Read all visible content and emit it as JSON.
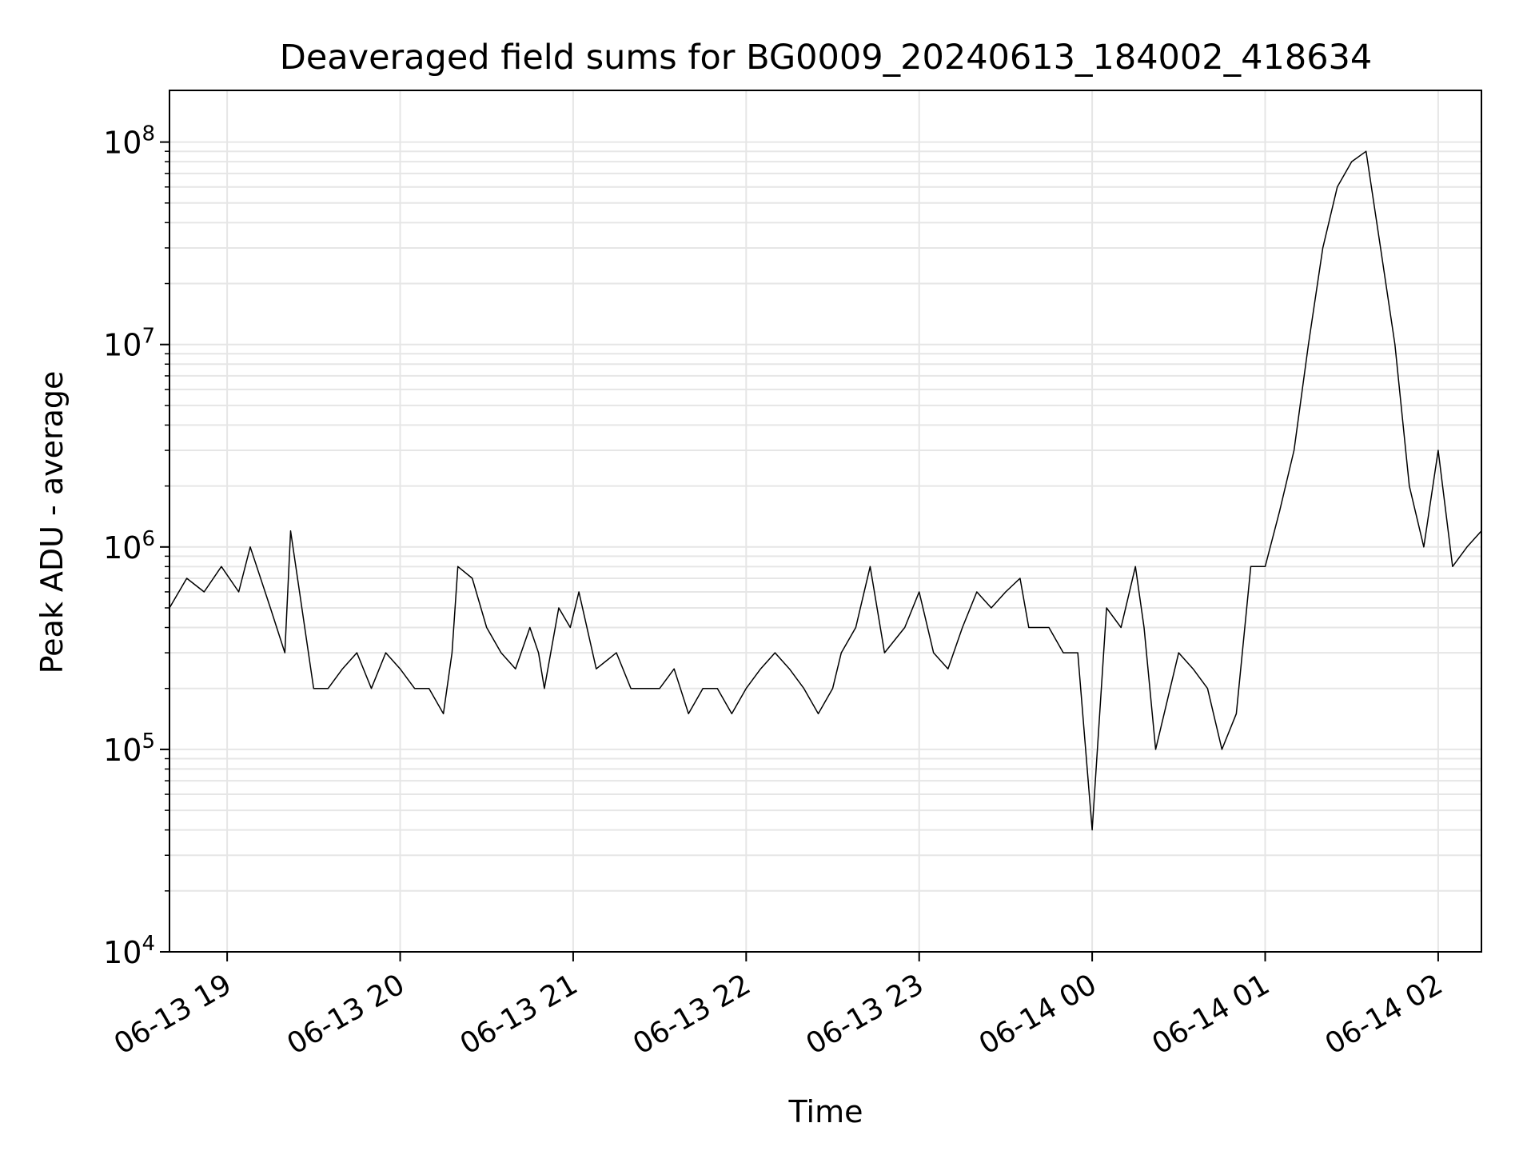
{
  "chart_data": {
    "type": "line",
    "title": "Deaveraged field sums for BG0009_20240613_184002_418634",
    "xlabel": "Time",
    "ylabel": "Peak ADU - average",
    "xlim": [
      "2024-06-13 18:40",
      "2024-06-14 02:15"
    ],
    "ylim": [
      10000,
      180000000
    ],
    "yscale": "log",
    "grid": true,
    "line_color": "#000000",
    "grid_color": "#e6e6e6",
    "x_ticks": [
      {
        "value": "2024-06-13 19:00",
        "label": "06-13 19"
      },
      {
        "value": "2024-06-13 20:00",
        "label": "06-13 20"
      },
      {
        "value": "2024-06-13 21:00",
        "label": "06-13 21"
      },
      {
        "value": "2024-06-13 22:00",
        "label": "06-13 22"
      },
      {
        "value": "2024-06-13 23:00",
        "label": "06-13 23"
      },
      {
        "value": "2024-06-14 00:00",
        "label": "06-14 00"
      },
      {
        "value": "2024-06-14 01:00",
        "label": "06-14 01"
      },
      {
        "value": "2024-06-14 02:00",
        "label": "06-14 02"
      }
    ],
    "y_ticks": [
      {
        "value": 10000,
        "base": "10",
        "exp": "4"
      },
      {
        "value": 100000,
        "base": "10",
        "exp": "5"
      },
      {
        "value": 1000000,
        "base": "10",
        "exp": "6"
      },
      {
        "value": 10000000,
        "base": "10",
        "exp": "7"
      },
      {
        "value": 100000000,
        "base": "10",
        "exp": "8"
      }
    ],
    "series": [
      {
        "x": [
          "2024-06-13 18:40",
          "2024-06-13 18:46",
          "2024-06-13 18:52",
          "2024-06-13 18:58",
          "2024-06-13 19:04",
          "2024-06-13 19:08",
          "2024-06-13 19:15",
          "2024-06-13 19:20",
          "2024-06-13 19:22",
          "2024-06-13 19:30",
          "2024-06-13 19:35",
          "2024-06-13 19:40",
          "2024-06-13 19:45",
          "2024-06-13 19:50",
          "2024-06-13 19:55",
          "2024-06-13 20:00",
          "2024-06-13 20:05",
          "2024-06-13 20:10",
          "2024-06-13 20:15",
          "2024-06-13 20:18",
          "2024-06-13 20:20",
          "2024-06-13 20:25",
          "2024-06-13 20:30",
          "2024-06-13 20:35",
          "2024-06-13 20:40",
          "2024-06-13 20:45",
          "2024-06-13 20:48",
          "2024-06-13 20:50",
          "2024-06-13 20:55",
          "2024-06-13 20:59",
          "2024-06-13 21:02",
          "2024-06-13 21:08",
          "2024-06-13 21:15",
          "2024-06-13 21:20",
          "2024-06-13 21:25",
          "2024-06-13 21:30",
          "2024-06-13 21:35",
          "2024-06-13 21:40",
          "2024-06-13 21:45",
          "2024-06-13 21:50",
          "2024-06-13 21:55",
          "2024-06-13 22:00",
          "2024-06-13 22:05",
          "2024-06-13 22:10",
          "2024-06-13 22:15",
          "2024-06-13 22:20",
          "2024-06-13 22:25",
          "2024-06-13 22:30",
          "2024-06-13 22:33",
          "2024-06-13 22:38",
          "2024-06-13 22:43",
          "2024-06-13 22:48",
          "2024-06-13 22:55",
          "2024-06-13 23:00",
          "2024-06-13 23:05",
          "2024-06-13 23:10",
          "2024-06-13 23:15",
          "2024-06-13 23:20",
          "2024-06-13 23:25",
          "2024-06-13 23:30",
          "2024-06-13 23:35",
          "2024-06-13 23:38",
          "2024-06-13 23:45",
          "2024-06-13 23:50",
          "2024-06-13 23:55",
          "2024-06-14 00:00",
          "2024-06-14 00:05",
          "2024-06-14 00:10",
          "2024-06-14 00:15",
          "2024-06-14 00:18",
          "2024-06-14 00:22",
          "2024-06-14 00:30",
          "2024-06-14 00:35",
          "2024-06-14 00:40",
          "2024-06-14 00:45",
          "2024-06-14 00:50",
          "2024-06-14 00:55",
          "2024-06-14 01:00",
          "2024-06-14 01:05",
          "2024-06-14 01:10",
          "2024-06-14 01:15",
          "2024-06-14 01:20",
          "2024-06-14 01:25",
          "2024-06-14 01:30",
          "2024-06-14 01:35",
          "2024-06-14 01:40",
          "2024-06-14 01:45",
          "2024-06-14 01:50",
          "2024-06-14 01:55",
          "2024-06-14 02:00",
          "2024-06-14 02:05",
          "2024-06-14 02:10",
          "2024-06-14 02:15"
        ],
        "y": [
          500000,
          700000,
          600000,
          800000,
          600000,
          1000000,
          500000,
          300000,
          1200000,
          200000,
          200000,
          250000,
          300000,
          200000,
          300000,
          250000,
          200000,
          200000,
          150000,
          300000,
          800000,
          700000,
          400000,
          300000,
          250000,
          400000,
          300000,
          200000,
          500000,
          400000,
          600000,
          250000,
          300000,
          200000,
          200000,
          200000,
          250000,
          150000,
          200000,
          200000,
          150000,
          200000,
          250000,
          300000,
          250000,
          200000,
          150000,
          200000,
          300000,
          400000,
          800000,
          300000,
          400000,
          600000,
          300000,
          250000,
          400000,
          600000,
          500000,
          600000,
          700000,
          400000,
          400000,
          300000,
          300000,
          40000,
          500000,
          400000,
          800000,
          400000,
          100000,
          300000,
          250000,
          200000,
          100000,
          150000,
          800000,
          800000,
          1500000,
          3000000,
          10000000,
          30000000,
          60000000,
          80000000,
          90000000,
          30000000,
          10000000,
          2000000,
          1000000,
          3000000,
          800000,
          1000000,
          1200000
        ]
      }
    ]
  }
}
